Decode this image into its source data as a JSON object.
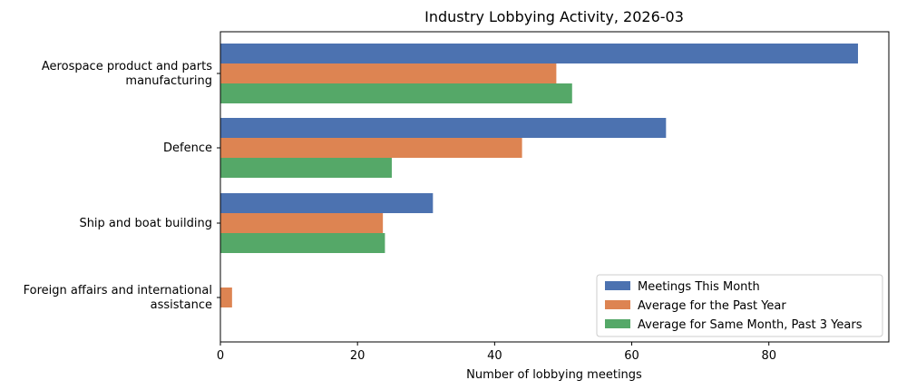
{
  "chart_data": {
    "type": "bar",
    "orientation": "horizontal",
    "title": "Industry Lobbying Activity, 2026-03",
    "xlabel": "Number of lobbying meetings",
    "ylabel": "",
    "xlim": [
      0,
      97.5
    ],
    "xticks": [
      0,
      20,
      40,
      60,
      80
    ],
    "categories": [
      [
        "Aerospace product and parts",
        "manufacturing"
      ],
      [
        "Defence"
      ],
      [
        "Ship and boat building"
      ],
      [
        "Foreign affairs and international",
        "assistance"
      ]
    ],
    "series": [
      {
        "name": "Meetings This Month",
        "color": "#4c72b0",
        "values": [
          93,
          65,
          31,
          0
        ]
      },
      {
        "name": "Average for the Past Year",
        "color": "#dd8452",
        "values": [
          49,
          44,
          23.7,
          1.7
        ]
      },
      {
        "name": "Average for Same Month, Past 3 Years",
        "color": "#55a868",
        "values": [
          51.3,
          25,
          24,
          0
        ]
      }
    ],
    "legend_position": "lower-right",
    "grid": false
  }
}
